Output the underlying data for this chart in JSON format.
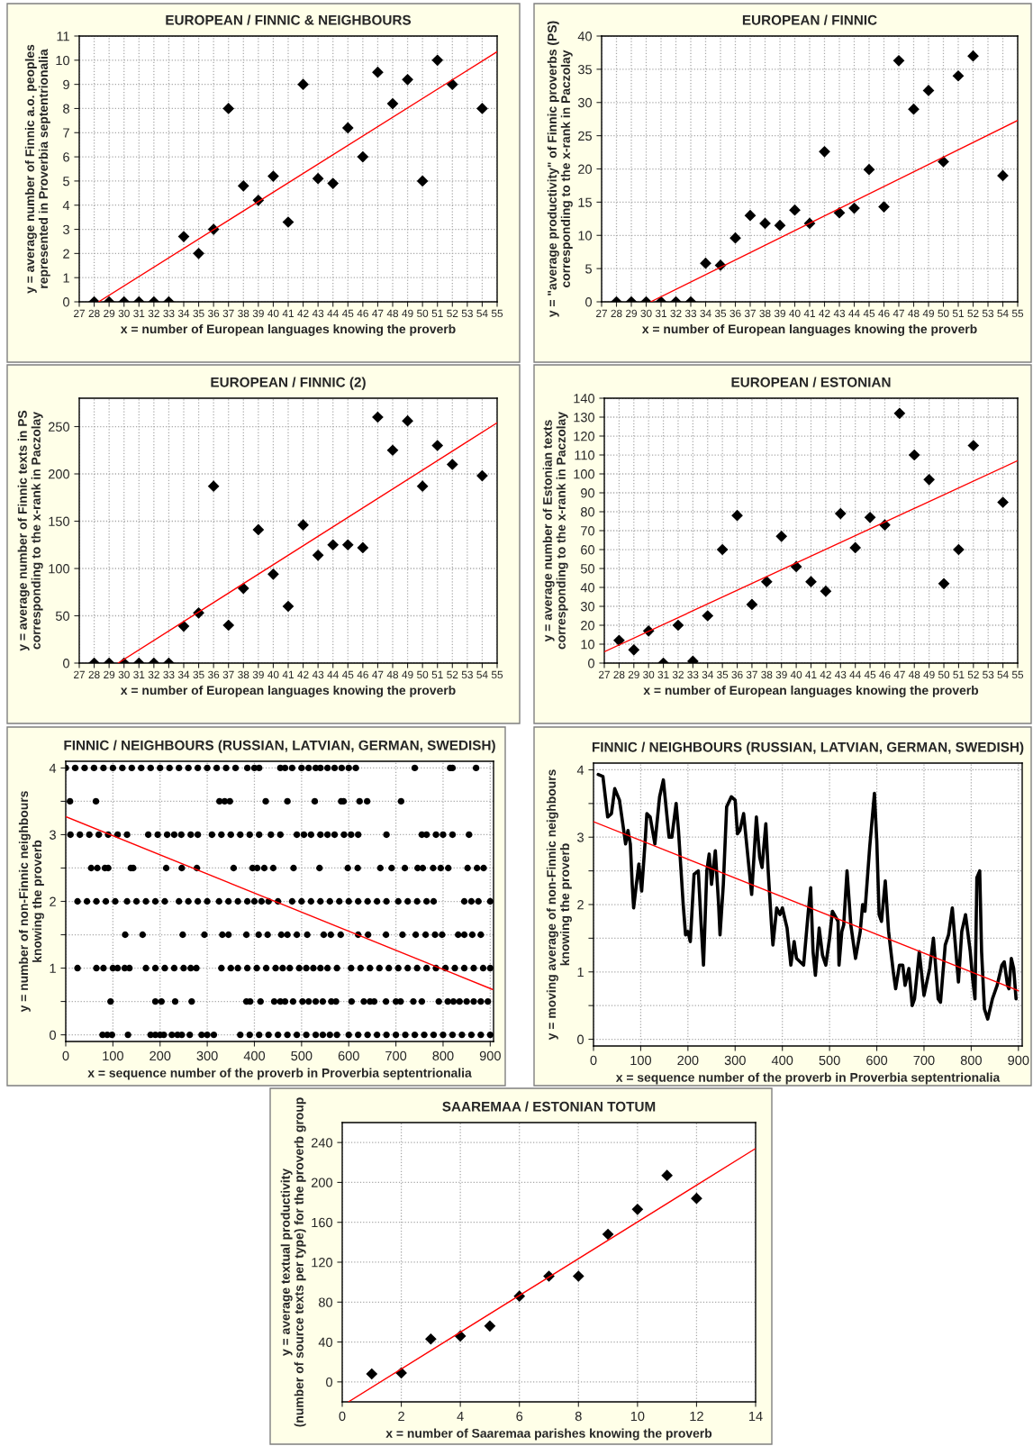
{
  "chart_data": [
    {
      "type": "scatter",
      "title": "EUROPEAN / FINNIC & NEIGHBOURS",
      "xlabel": "x = number of European languages knowing the proverb",
      "ylabel": "y = average number of Finnic a.o. peoples\nrepresented in Proverbia septentrionalia",
      "xlim": [
        27,
        55
      ],
      "ylim": [
        0,
        11
      ],
      "xticks": [
        27,
        28,
        29,
        30,
        31,
        32,
        33,
        34,
        35,
        36,
        37,
        38,
        39,
        40,
        41,
        42,
        43,
        44,
        45,
        46,
        47,
        48,
        49,
        50,
        51,
        52,
        53,
        54,
        55
      ],
      "yticks": [
        0,
        1,
        2,
        3,
        4,
        5,
        6,
        7,
        8,
        9,
        10,
        11
      ],
      "grid": true,
      "marker": "diamond",
      "series": [
        {
          "color": "#000000",
          "x": [
            28,
            29,
            30,
            31,
            32,
            33,
            34,
            35,
            36,
            37,
            38,
            39,
            40,
            41,
            42,
            43,
            44,
            45,
            46,
            47,
            48,
            49,
            50,
            51,
            52,
            54
          ],
          "values": [
            0,
            0,
            0,
            0,
            0,
            0,
            2.7,
            2.0,
            3.0,
            8.0,
            4.8,
            4.2,
            5.2,
            3.3,
            9.0,
            5.1,
            4.9,
            7.2,
            6.0,
            9.5,
            8.2,
            9.2,
            5.0,
            10.0,
            9.0,
            8.0
          ]
        },
        {
          "type": "line",
          "marker": "none",
          "color": "#ff0000",
          "x": [
            28.3,
            55
          ],
          "values": [
            0,
            10.35
          ]
        }
      ]
    },
    {
      "type": "scatter",
      "title": "EUROPEAN / FINNIC",
      "xlabel": "x = number of European languages knowing the proverb",
      "ylabel": "y = \"average productivity\" of Finnic proverbs (PS)\ncorresponding to the x-rank in Paczolay",
      "xlim": [
        27,
        55
      ],
      "ylim": [
        0,
        40
      ],
      "xticks": [
        27,
        28,
        29,
        30,
        31,
        32,
        33,
        34,
        35,
        36,
        37,
        38,
        39,
        40,
        41,
        42,
        43,
        44,
        45,
        46,
        47,
        48,
        49,
        50,
        51,
        52,
        53,
        54,
        55
      ],
      "yticks": [
        0,
        5,
        10,
        15,
        20,
        25,
        30,
        35,
        40
      ],
      "grid": true,
      "marker": "diamond",
      "series": [
        {
          "color": "#000000",
          "x": [
            28,
            29,
            30,
            31,
            32,
            33,
            34,
            35,
            36,
            37,
            38,
            39,
            40,
            41,
            42,
            43,
            44,
            45,
            46,
            47,
            48,
            49,
            50,
            51,
            52,
            54
          ],
          "values": [
            0,
            0,
            0,
            0,
            0,
            0,
            5.8,
            5.5,
            9.6,
            13.0,
            11.8,
            11.5,
            13.8,
            11.8,
            22.6,
            13.4,
            14.1,
            19.9,
            14.3,
            36.3,
            29.0,
            31.8,
            21.1,
            34.0,
            37.0,
            19.0
          ]
        },
        {
          "type": "line",
          "marker": "none",
          "color": "#ff0000",
          "x": [
            30.3,
            55
          ],
          "values": [
            0,
            27.3
          ]
        }
      ]
    },
    {
      "type": "scatter",
      "title": "EUROPEAN / FINNIC (2)",
      "xlabel": "x = number of European languages knowing the proverb",
      "ylabel": "y = average number of Finnic texts in PS\ncorresponding to the x-rank in Paczolay",
      "xlim": [
        27,
        55
      ],
      "ylim": [
        0,
        280
      ],
      "xticks": [
        27,
        28,
        29,
        30,
        31,
        32,
        33,
        34,
        35,
        36,
        37,
        38,
        39,
        40,
        41,
        42,
        43,
        44,
        45,
        46,
        47,
        48,
        49,
        50,
        51,
        52,
        53,
        54,
        55
      ],
      "yticks": [
        0,
        50,
        100,
        150,
        200,
        250
      ],
      "grid": true,
      "marker": "diamond",
      "series": [
        {
          "color": "#000000",
          "x": [
            28,
            29,
            30,
            31,
            32,
            33,
            34,
            35,
            36,
            37,
            38,
            39,
            40,
            41,
            42,
            43,
            44,
            45,
            46,
            47,
            48,
            49,
            50,
            51,
            52,
            54
          ],
          "values": [
            0,
            0,
            0,
            0,
            0,
            0,
            39,
            53,
            187,
            40,
            79,
            141,
            94,
            60,
            146,
            114,
            125,
            125,
            122,
            260,
            225,
            256,
            187,
            230,
            210,
            198
          ]
        },
        {
          "type": "line",
          "marker": "none",
          "color": "#ff0000",
          "x": [
            29.6,
            55
          ],
          "values": [
            0,
            254
          ]
        }
      ]
    },
    {
      "type": "scatter",
      "title": "EUROPEAN / ESTONIAN",
      "xlabel": "x = number of European languages knowing the proverb",
      "ylabel": "y = average number of Estonian texts\ncorresponding to the x-rank in Paczolay",
      "xlim": [
        27,
        55
      ],
      "ylim": [
        0,
        140
      ],
      "xticks": [
        27,
        28,
        29,
        30,
        31,
        32,
        33,
        34,
        35,
        36,
        37,
        38,
        39,
        40,
        41,
        42,
        43,
        44,
        45,
        46,
        47,
        48,
        49,
        50,
        51,
        52,
        53,
        54,
        55
      ],
      "yticks": [
        0,
        10,
        20,
        30,
        40,
        50,
        60,
        70,
        80,
        90,
        100,
        110,
        120,
        130,
        140
      ],
      "grid": true,
      "marker": "diamond",
      "series": [
        {
          "color": "#000000",
          "x": [
            28,
            29,
            30,
            31,
            32,
            33,
            34,
            35,
            36,
            37,
            38,
            39,
            40,
            41,
            42,
            43,
            44,
            45,
            46,
            47,
            48,
            49,
            50,
            51,
            52,
            54
          ],
          "values": [
            12,
            7,
            17,
            0,
            20,
            1,
            25,
            60,
            78,
            31,
            43,
            67,
            51,
            43,
            38,
            79,
            61,
            77,
            73,
            132,
            110,
            97,
            42,
            60,
            115,
            85
          ]
        },
        {
          "type": "line",
          "marker": "none",
          "color": "#ff0000",
          "x": [
            27,
            55
          ],
          "values": [
            6,
            107
          ]
        }
      ]
    },
    {
      "type": "scatter",
      "title": "FINNIC / NEIGHBOURS (RUSSIAN, LATVIAN, GERMAN, SWEDISH)",
      "xlabel": "x = sequence number of the proverb in Proverbia septentrionalia",
      "ylabel": "y = number of non-Finnic neighbours\nknowing the proverb",
      "xlim": [
        0,
        907
      ],
      "ylim": [
        -0.1,
        4.1
      ],
      "xticks": [
        0,
        100,
        200,
        300,
        400,
        500,
        600,
        700,
        800,
        900
      ],
      "yticks": [
        0,
        {
          "value": 0.5,
          "label": null
        },
        1,
        {
          "value": 1.5,
          "label": null
        },
        2,
        {
          "value": 2.5,
          "label": null
        },
        3,
        {
          "value": 3.5,
          "label": null
        },
        4
      ],
      "grid": true,
      "marker": "circle",
      "series": [
        {
          "color": "#000000",
          "x": [
            0,
            20,
            40,
            60,
            80,
            100,
            120,
            140,
            160,
            180,
            200,
            220,
            240,
            260,
            280,
            300,
            320,
            340,
            360,
            385,
            400,
            410,
            455,
            465,
            480,
            500,
            515,
            530,
            540,
            555,
            570,
            585,
            600,
            615,
            740,
            815,
            820,
            870
          ],
          "values": [
            4,
            4,
            4,
            4,
            4,
            4,
            4,
            4,
            4,
            4,
            4,
            4,
            4,
            4,
            4,
            4,
            4,
            4,
            4,
            4,
            4,
            4,
            4,
            4,
            4,
            4,
            4,
            4,
            4,
            4,
            4,
            4,
            4,
            4,
            4,
            4,
            4,
            4
          ]
        },
        {
          "color": "#000000",
          "x": [
            9,
            64,
            326,
            337,
            348,
            424,
            470,
            528,
            584,
            589,
            623,
            639,
            711
          ],
          "values": [
            3.5,
            3.5,
            3.5,
            3.5,
            3.5,
            3.5,
            3.5,
            3.5,
            3.5,
            3.5,
            3.5,
            3.5,
            3.5
          ]
        },
        {
          "color": "#000000",
          "x": [
            10,
            30,
            50,
            70,
            90,
            110,
            130,
            175,
            195,
            215,
            230,
            245,
            265,
            280,
            310,
            330,
            350,
            370,
            390,
            410,
            435,
            455,
            490,
            505,
            520,
            540,
            555,
            570,
            590,
            605,
            620,
            680,
            755,
            765,
            785,
            800,
            820,
            855
          ],
          "values": [
            3,
            3,
            3,
            3,
            3,
            3,
            3,
            3,
            3,
            3,
            3,
            3,
            3,
            3,
            3,
            3,
            3,
            3,
            3,
            3,
            3,
            3,
            3,
            3,
            3,
            3,
            3,
            3,
            3,
            3,
            3,
            3,
            3,
            3,
            3,
            3,
            3,
            3
          ]
        },
        {
          "color": "#000000",
          "x": [
            54,
            67,
            83,
            90,
            138,
            143,
            213,
            246,
            278,
            356,
            396,
            406,
            421,
            440,
            483,
            538,
            598,
            619,
            667,
            691,
            719,
            746,
            757,
            779,
            795,
            811,
            852,
            872,
            886
          ],
          "values": [
            2.5,
            2.5,
            2.5,
            2.5,
            2.5,
            2.5,
            2.5,
            2.5,
            2.5,
            2.5,
            2.5,
            2.5,
            2.5,
            2.5,
            2.5,
            2.5,
            2.5,
            2.5,
            2.5,
            2.5,
            2.5,
            2.5,
            2.5,
            2.5,
            2.5,
            2.5,
            2.5,
            2.5,
            2.5
          ]
        },
        {
          "color": "#000000",
          "x": [
            25,
            45,
            65,
            85,
            105,
            130,
            150,
            170,
            190,
            210,
            240,
            260,
            280,
            300,
            325,
            345,
            365,
            385,
            400,
            415,
            430,
            450,
            480,
            500,
            520,
            540,
            560,
            580,
            600,
            620,
            640,
            660,
            680,
            705,
            725,
            745,
            765,
            780,
            845,
            860,
            875,
            900
          ],
          "values": [
            2,
            2,
            2,
            2,
            2,
            2,
            2,
            2,
            2,
            2,
            2,
            2,
            2,
            2,
            2,
            2,
            2,
            2,
            2,
            2,
            2,
            2,
            2,
            2,
            2,
            2,
            2,
            2,
            2,
            2,
            2,
            2,
            2,
            2,
            2,
            2,
            2,
            2,
            2,
            2,
            2,
            2
          ]
        },
        {
          "color": "#000000",
          "x": [
            126,
            163,
            248,
            294,
            332,
            345,
            383,
            409,
            428,
            457,
            470,
            490,
            512,
            547,
            562,
            583,
            620,
            641,
            679,
            714,
            742,
            763,
            783,
            798,
            832,
            845,
            862,
            880
          ],
          "values": [
            1.5,
            1.5,
            1.5,
            1.5,
            1.5,
            1.5,
            1.5,
            1.5,
            1.5,
            1.5,
            1.5,
            1.5,
            1.5,
            1.5,
            1.5,
            1.5,
            1.5,
            1.5,
            1.5,
            1.5,
            1.5,
            1.5,
            1.5,
            1.5,
            1.5,
            1.5,
            1.5,
            1.5
          ]
        },
        {
          "color": "#000000",
          "x": [
            25,
            65,
            80,
            100,
            110,
            125,
            135,
            170,
            190,
            210,
            230,
            250,
            265,
            277,
            330,
            350,
            365,
            385,
            405,
            425,
            445,
            460,
            475,
            495,
            510,
            525,
            540,
            555,
            575,
            605,
            625,
            645,
            665,
            685,
            705,
            725,
            745,
            765,
            785,
            805,
            825,
            845,
            865,
            885,
            900
          ],
          "values": [
            1,
            1,
            1,
            1,
            1,
            1,
            1,
            1,
            1,
            1,
            1,
            1,
            1,
            1,
            1,
            1,
            1,
            1,
            1,
            1,
            1,
            1,
            1,
            1,
            1,
            1,
            1,
            1,
            1,
            1,
            1,
            1,
            1,
            1,
            1,
            1,
            1,
            1,
            1,
            1,
            1,
            1,
            1,
            1,
            1
          ]
        },
        {
          "color": "#000000",
          "x": [
            95,
            190,
            203,
            232,
            267,
            383,
            391,
            413,
            442,
            455,
            465,
            482,
            502,
            515,
            530,
            545,
            563,
            573,
            606,
            632,
            645,
            654,
            679,
            700,
            710,
            737,
            755,
            791,
            810,
            822,
            835,
            850,
            865,
            880,
            895
          ],
          "values": [
            0.5,
            0.5,
            0.5,
            0.5,
            0.5,
            0.5,
            0.5,
            0.5,
            0.5,
            0.5,
            0.5,
            0.5,
            0.5,
            0.5,
            0.5,
            0.5,
            0.5,
            0.5,
            0.5,
            0.5,
            0.5,
            0.5,
            0.5,
            0.5,
            0.5,
            0.5,
            0.5,
            0.5,
            0.5,
            0.5,
            0.5,
            0.5,
            0.5,
            0.5,
            0.5
          ]
        },
        {
          "color": "#000000",
          "x": [
            78,
            88,
            98,
            132,
            180,
            190,
            200,
            208,
            225,
            237,
            246,
            263,
            288,
            300,
            314,
            370,
            390,
            410,
            430,
            450,
            470,
            490,
            510,
            530,
            545,
            560,
            575,
            600,
            620,
            640,
            660,
            680,
            700,
            720,
            740,
            760,
            780,
            800,
            820,
            840,
            860,
            880,
            900
          ],
          "values": [
            0,
            0,
            0,
            0,
            0,
            0,
            0,
            0,
            0,
            0,
            0,
            0,
            0,
            0,
            0,
            0,
            0,
            0,
            0,
            0,
            0,
            0,
            0,
            0,
            0,
            0,
            0,
            0,
            0,
            0,
            0,
            0,
            0,
            0,
            0,
            0,
            0,
            0,
            0,
            0,
            0,
            0,
            0
          ]
        },
        {
          "type": "line",
          "marker": "none",
          "color": "#ff0000",
          "x": [
            0,
            905
          ],
          "values": [
            3.27,
            0.68
          ]
        }
      ]
    },
    {
      "type": "line",
      "title": "FINNIC / NEIGHBOURS (RUSSIAN, LATVIAN, GERMAN, SWEDISH)",
      "xlabel": "x = sequence number of the proverb in Proverbia septentrionalia",
      "ylabel": "y = moving average of non-Finnic neighbours\nknowing the proverb",
      "xlim": [
        0,
        908
      ],
      "ylim": [
        -0.1,
        4.1
      ],
      "xticks": [
        0,
        100,
        200,
        300,
        400,
        500,
        600,
        700,
        800,
        900
      ],
      "yticks": [
        0,
        {
          "value": 0.5,
          "label": null
        },
        1,
        {
          "value": 1.5,
          "label": null
        },
        2,
        {
          "value": 2.5,
          "label": null
        },
        3,
        {
          "value": 3.5,
          "label": null
        },
        4
      ],
      "grid": true,
      "series": [
        {
          "color": "#000000",
          "x": [
            10,
            20,
            30,
            38,
            45,
            55,
            63,
            68,
            73,
            78,
            82,
            85,
            90,
            96,
            102,
            110,
            113,
            120,
            130,
            140,
            148,
            160,
            166,
            175,
            180,
            190,
            195,
            200,
            205,
            213,
            222,
            228,
            233,
            240,
            245,
            250,
            258,
            265,
            268,
            275,
            282,
            292,
            300,
            305,
            310,
            318,
            330,
            335,
            345,
            352,
            357,
            365,
            370,
            377,
            380,
            388,
            395,
            400,
            410,
            418,
            425,
            430,
            445,
            455,
            460,
            465,
            470,
            478,
            485,
            492,
            500,
            506,
            510,
            518,
            520,
            526,
            530,
            537,
            545,
            555,
            565,
            570,
            575,
            585,
            595,
            600,
            605,
            610,
            618,
            625,
            635,
            640,
            648,
            655,
            660,
            668,
            675,
            680,
            690,
            700,
            712,
            720,
            730,
            735,
            745,
            752,
            760,
            770,
            773,
            780,
            788,
            798,
            803,
            808,
            812,
            818,
            822,
            828,
            835,
            845,
            855,
            865,
            870,
            877,
            880,
            885,
            890,
            895
          ],
          "values": [
            3.93,
            3.9,
            3.3,
            3.35,
            3.72,
            3.55,
            3.15,
            2.9,
            3.1,
            2.9,
            2.3,
            1.95,
            2.25,
            2.6,
            2.2,
            3.0,
            3.35,
            3.3,
            2.9,
            3.6,
            3.85,
            3.0,
            3.0,
            3.5,
            3.1,
            2.0,
            1.55,
            1.6,
            1.45,
            2.45,
            2.5,
            1.7,
            1.1,
            2.5,
            2.75,
            2.3,
            2.8,
            2.0,
            1.55,
            2.3,
            3.45,
            3.6,
            3.55,
            3.05,
            3.1,
            3.35,
            2.5,
            2.15,
            3.3,
            2.7,
            2.55,
            3.2,
            2.5,
            1.7,
            1.4,
            1.95,
            1.85,
            1.95,
            1.65,
            1.1,
            1.45,
            1.2,
            1.1,
            1.9,
            2.25,
            1.3,
            0.95,
            1.65,
            1.25,
            1.1,
            1.5,
            1.9,
            1.85,
            1.75,
            1.1,
            1.6,
            1.7,
            2.5,
            1.7,
            1.2,
            1.6,
            2.0,
            1.9,
            2.85,
            3.65,
            2.95,
            1.85,
            1.75,
            2.35,
            1.6,
            1.0,
            0.75,
            1.1,
            1.1,
            0.8,
            1.05,
            0.5,
            0.6,
            1.3,
            0.65,
            1.05,
            1.5,
            0.6,
            0.55,
            1.4,
            1.55,
            1.95,
            1.1,
            0.85,
            1.6,
            1.85,
            1.3,
            0.9,
            0.6,
            2.4,
            2.5,
            1.3,
            0.45,
            0.3,
            0.6,
            0.8,
            1.1,
            1.15,
            0.8,
            0.75,
            1.2,
            1.05,
            0.6
          ]
        },
        {
          "type": "line",
          "color": "#ff0000",
          "x": [
            0,
            900
          ],
          "values": [
            3.23,
            0.72
          ]
        }
      ]
    },
    {
      "type": "scatter",
      "title": "SAAREMAA / ESTONIAN TOTUM",
      "xlabel": "x = number of Saaremaa parishes knowing the proverb",
      "ylabel": "y = average textual productivity\n(number of source texts per type) for the proverb group",
      "xlim": [
        0,
        14
      ],
      "ylim": [
        -20,
        260
      ],
      "xticks": [
        0,
        2,
        4,
        6,
        8,
        10,
        12,
        14
      ],
      "yticks": [
        0,
        40,
        80,
        120,
        160,
        200,
        240
      ],
      "grid": true,
      "marker": "diamond",
      "series": [
        {
          "color": "#000000",
          "x": [
            1,
            2,
            3,
            4,
            5,
            6,
            7,
            8,
            9,
            10,
            11,
            12
          ],
          "values": [
            8,
            9,
            43,
            46,
            56,
            86,
            106,
            106,
            148,
            173,
            207,
            184
          ]
        },
        {
          "type": "line",
          "marker": "none",
          "color": "#ff0000",
          "x": [
            0.21,
            14
          ],
          "values": [
            -20,
            234
          ]
        }
      ]
    }
  ]
}
